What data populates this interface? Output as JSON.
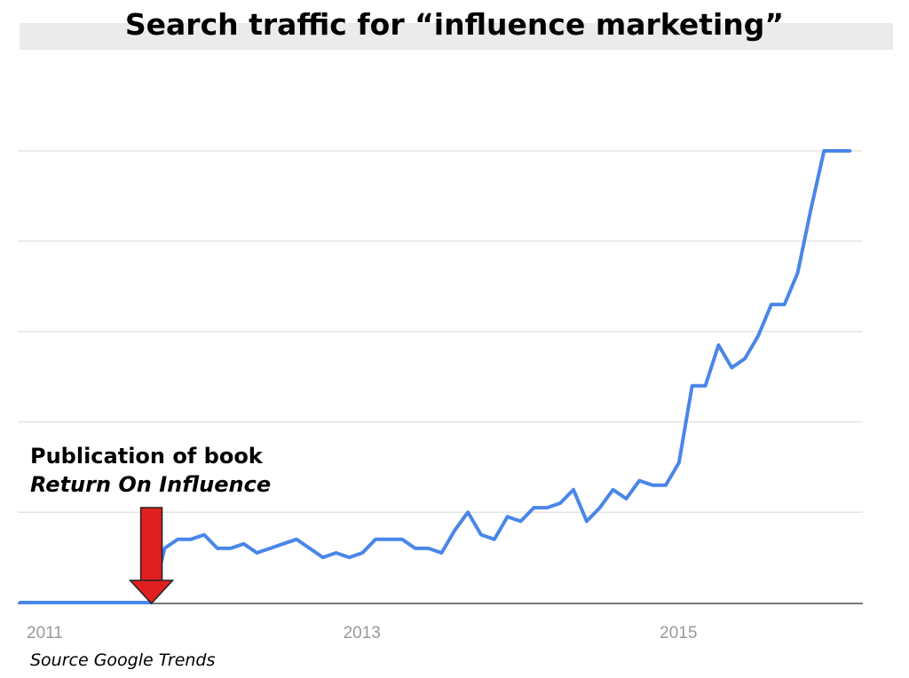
{
  "chart_data": {
    "type": "line",
    "title": "Search traffic for “influence marketing”",
    "xlabel": "",
    "ylabel": "",
    "x_ticks": [
      "2011",
      "2013",
      "2015"
    ],
    "x": [
      "2011-01",
      "2011-02",
      "2011-03",
      "2011-04",
      "2011-05",
      "2011-06",
      "2011-07",
      "2011-08",
      "2011-09",
      "2011-10",
      "2011-11",
      "2011-12",
      "2012-01",
      "2012-02",
      "2012-03",
      "2012-04",
      "2012-05",
      "2012-06",
      "2012-07",
      "2012-08",
      "2012-09",
      "2012-10",
      "2012-11",
      "2012-12",
      "2013-01",
      "2013-02",
      "2013-03",
      "2013-04",
      "2013-05",
      "2013-06",
      "2013-07",
      "2013-08",
      "2013-09",
      "2013-10",
      "2013-11",
      "2013-12",
      "2014-01",
      "2014-02",
      "2014-03",
      "2014-04",
      "2014-05",
      "2014-06",
      "2014-07",
      "2014-08",
      "2014-09",
      "2014-10",
      "2014-11",
      "2014-12",
      "2015-01",
      "2015-02",
      "2015-03",
      "2015-04",
      "2015-05",
      "2015-06",
      "2015-07",
      "2015-08",
      "2015-09",
      "2015-10",
      "2015-11",
      "2015-12",
      "2016-01",
      "2016-02",
      "2016-03",
      "2016-04"
    ],
    "series": [
      {
        "color": "#4a86e8",
        "values": [
          0,
          0,
          0,
          0,
          0,
          0,
          0,
          0,
          0,
          0,
          0,
          12,
          14,
          14,
          15,
          12,
          12,
          13,
          11,
          12,
          13,
          14,
          12,
          10,
          11,
          10,
          11,
          14,
          14,
          14,
          12,
          12,
          11,
          16,
          20,
          15,
          14,
          19,
          18,
          21,
          21,
          22,
          25,
          18,
          21,
          25,
          23,
          27,
          26,
          26,
          31,
          48,
          48,
          57,
          52,
          54,
          59,
          66,
          66,
          73,
          87,
          100,
          100,
          100
        ]
      }
    ],
    "ylim": [
      0,
      100
    ],
    "grid": true,
    "legend": "none"
  },
  "annotation": {
    "line1": "Publication of  book",
    "line2": "Return On Influence",
    "arrow_color": "#e02020"
  },
  "source": "Source Google Trends"
}
